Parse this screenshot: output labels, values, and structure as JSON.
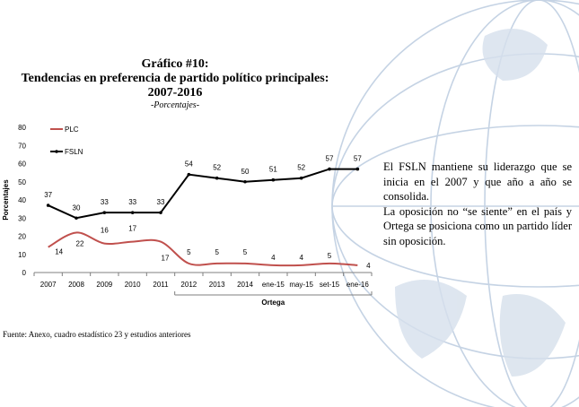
{
  "header": {
    "title_line1": "Gráfico #10:",
    "title_line2": "Tendencias en preferencia de partido político principales:",
    "title_line3": "2007-2016",
    "subtitle": "-Porcentajes-"
  },
  "text": {
    "para1": "El FSLN mantiene su liderazgo que se inicia  en el 2007 y que año a año se consolida.",
    "para2": "La oposición   no “se siente” en el país y Ortega se posiciona como un partido líder sin oposición."
  },
  "footer": {
    "source": "Fuente: Anexo, cuadro estadístico 23 y estudios anteriores"
  },
  "colors": {
    "plc": "#c0504d",
    "fsln": "#000000",
    "axis": "#7f7f7f",
    "globe": "#c5d3e4"
  },
  "chart_data": {
    "type": "line",
    "categories": [
      "2007",
      "2008",
      "2009",
      "2010",
      "2011",
      "2012",
      "2013",
      "2014",
      "ene-15",
      "may-15",
      "set-15",
      "ene-16"
    ],
    "series": [
      {
        "name": "PLC",
        "values": [
          14,
          22,
          16,
          17,
          17,
          5,
          5,
          5,
          4,
          4,
          5,
          4
        ]
      },
      {
        "name": "FSLN",
        "values": [
          37,
          30,
          33,
          33,
          33,
          54,
          52,
          50,
          51,
          52,
          57,
          57
        ]
      }
    ],
    "ylabel": "Porcentajes",
    "xgroup_label": "Ortega",
    "ylim": [
      0,
      80
    ],
    "yticks": [
      0,
      10,
      20,
      30,
      40,
      50,
      60,
      70,
      80
    ],
    "legend": "top-left",
    "grid": false
  }
}
